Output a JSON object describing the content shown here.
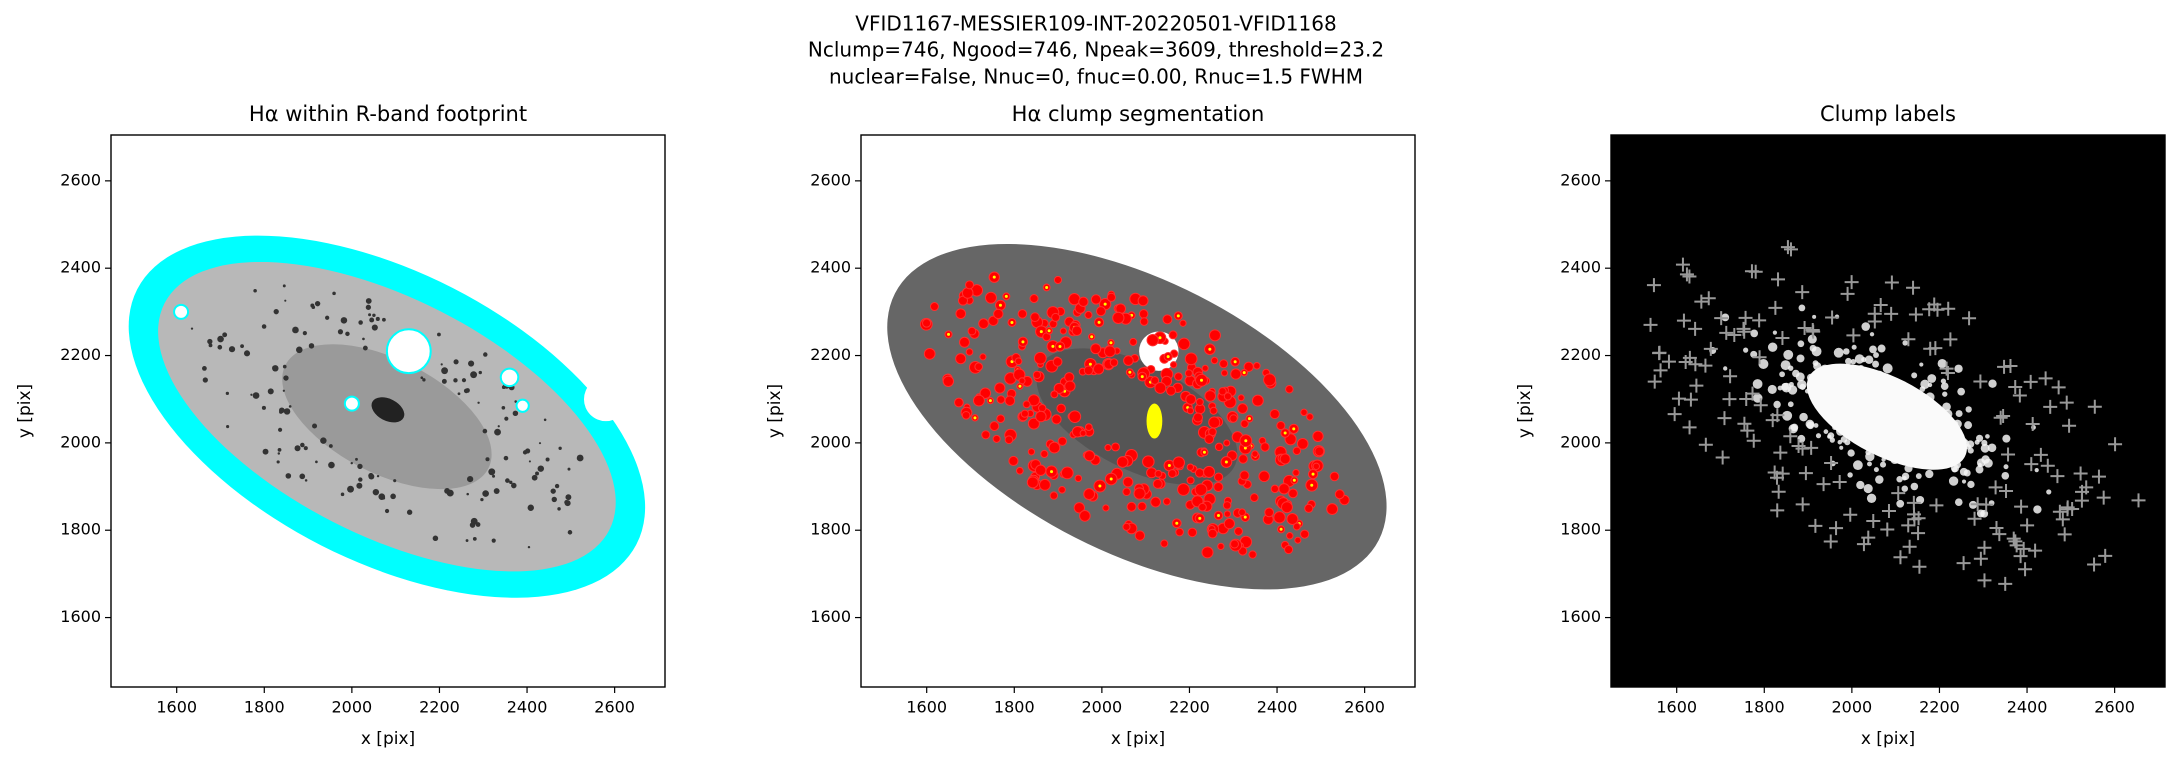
{
  "title_lines": [
    "VFID1167-MESSIER109-INT-20220501-VFID1168",
    "Nclump=746, Ngood=746, Npeak=3609, threshold=23.2",
    "nuclear=False, Nnuc=0, fnuc=0.00, Rnuc=1.5 FWHM"
  ],
  "chart_data": [
    {
      "type": "image",
      "title": "Hα within R-band footprint",
      "xlabel": "x [pix]",
      "ylabel": "y [pix]",
      "xlim": [
        1450,
        2715
      ],
      "ylim": [
        1441,
        2705
      ],
      "xticks": [
        1600,
        1800,
        2000,
        2200,
        2400,
        2600
      ],
      "yticks": [
        1600,
        1800,
        2000,
        2200,
        2400,
        2600
      ]
    },
    {
      "type": "image",
      "title": "Hα clump segmentation",
      "xlabel": "x [pix]",
      "ylabel": "y [pix]",
      "xlim": [
        1450,
        2715
      ],
      "ylim": [
        1441,
        2705
      ],
      "xticks": [
        1600,
        1800,
        2000,
        2200,
        2400,
        2600
      ],
      "yticks": [
        1600,
        1800,
        2000,
        2200,
        2400,
        2600
      ]
    },
    {
      "type": "image",
      "title": "Clump labels",
      "xlabel": "x [pix]",
      "ylabel": "y [pix]",
      "xlim": [
        1450,
        2715
      ],
      "ylim": [
        1441,
        2705
      ],
      "xticks": [
        1600,
        1800,
        2000,
        2200,
        2400,
        2600
      ],
      "yticks": [
        1600,
        1800,
        2000,
        2200,
        2400,
        2600
      ]
    }
  ]
}
